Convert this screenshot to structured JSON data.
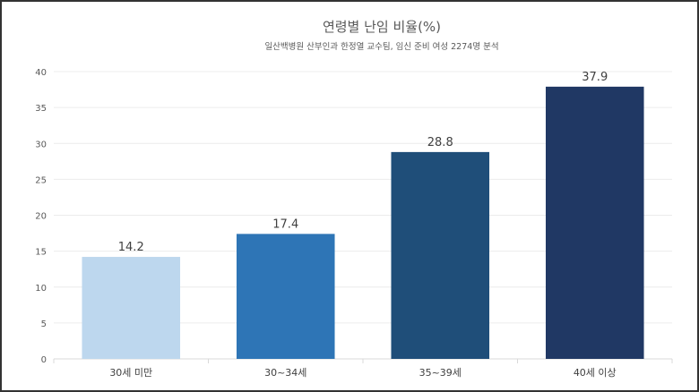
{
  "chart_data": {
    "type": "bar",
    "title": "연령별 난임 비율(%)",
    "subtitle": "일산백병원 산부인과 한정열 교수팀, 임신 준비 여성 2274명 분석",
    "categories": [
      "30세 미만",
      "30~34세",
      "35~39세",
      "40세 이상"
    ],
    "values": [
      14.2,
      17.4,
      28.8,
      37.9
    ],
    "value_labels": [
      "14.2",
      "17.4",
      "28.8",
      "37.9"
    ],
    "colors": [
      "#bdd7ee",
      "#2e75b6",
      "#1f4e79",
      "#203864"
    ],
    "ylim": [
      0,
      40
    ],
    "yticks": [
      0,
      5,
      10,
      15,
      20,
      25,
      30,
      35,
      40
    ],
    "grid": true,
    "legend": "none",
    "xlabel": "",
    "ylabel": ""
  }
}
